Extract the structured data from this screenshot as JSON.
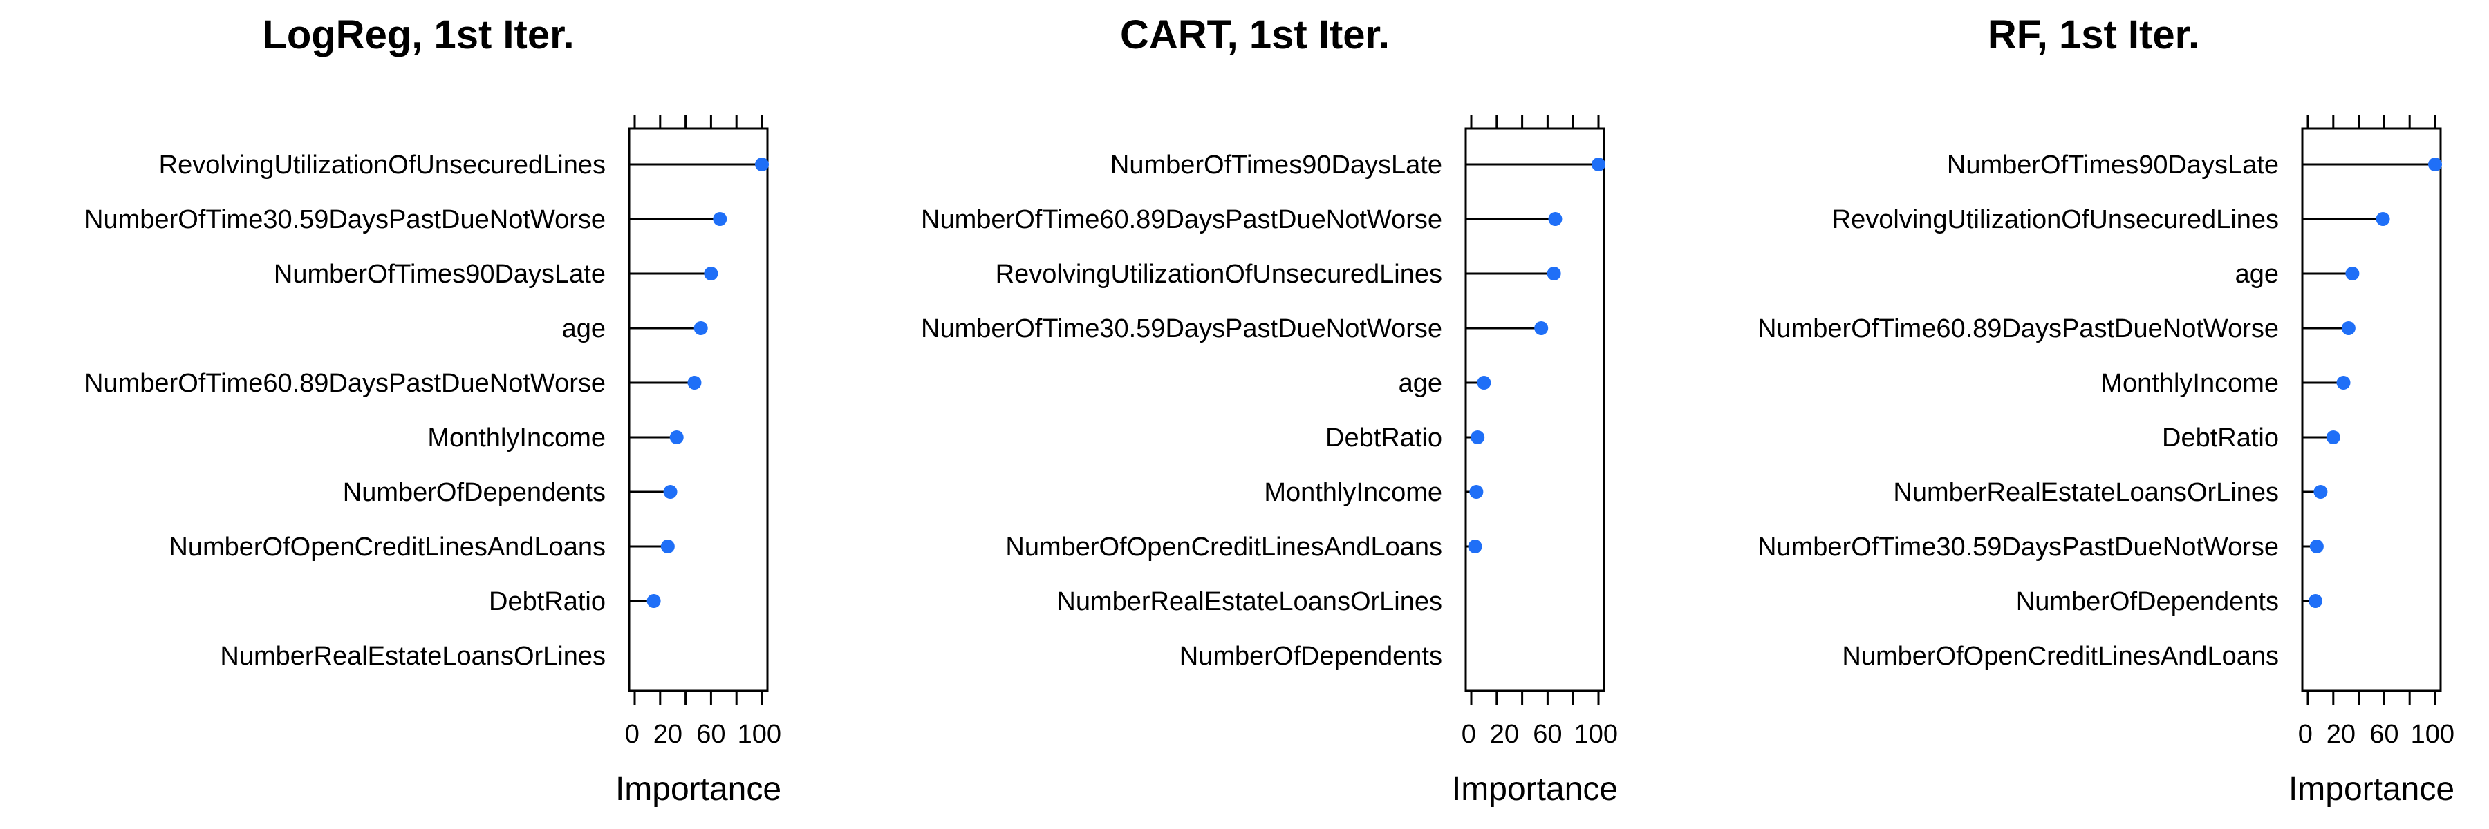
{
  "colors": {
    "point": "#1f6ff7",
    "stem": "#000000",
    "frame": "#000000"
  },
  "chart_data": [
    {
      "type": "lollipop",
      "title": "LogReg, 1st Iter.",
      "xlabel": "Importance",
      "xlim": [
        0,
        100
      ],
      "xticks": [
        "0",
        "20",
        "60",
        "100"
      ],
      "categories": [
        "RevolvingUtilizationOfUnsecuredLines",
        "NumberOfTime30.59DaysPastDueNotWorse",
        "NumberOfTimes90DaysLate",
        "age",
        "NumberOfTime60.89DaysPastDueNotWorse",
        "MonthlyIncome",
        "NumberOfDependents",
        "NumberOfOpenCreditLinesAndLoans",
        "DebtRatio",
        "NumberRealEstateLoansOrLines"
      ],
      "values": [
        100,
        67,
        60,
        52,
        47,
        33,
        28,
        26,
        15,
        0
      ]
    },
    {
      "type": "lollipop",
      "title": "CART, 1st Iter.",
      "xlabel": "Importance",
      "xlim": [
        0,
        100
      ],
      "xticks": [
        "0",
        "20",
        "60",
        "100"
      ],
      "categories": [
        "NumberOfTimes90DaysLate",
        "NumberOfTime60.89DaysPastDueNotWorse",
        "RevolvingUtilizationOfUnsecuredLines",
        "NumberOfTime30.59DaysPastDueNotWorse",
        "age",
        "DebtRatio",
        "MonthlyIncome",
        "NumberOfOpenCreditLinesAndLoans",
        "NumberRealEstateLoansOrLines",
        "NumberOfDependents"
      ],
      "values": [
        100,
        66,
        65,
        55,
        10,
        5,
        4,
        3,
        0,
        0
      ]
    },
    {
      "type": "lollipop",
      "title": "RF, 1st Iter.",
      "xlabel": "Importance",
      "xlim": [
        0,
        100
      ],
      "xticks": [
        "0",
        "20",
        "60",
        "100"
      ],
      "categories": [
        "NumberOfTimes90DaysLate",
        "RevolvingUtilizationOfUnsecuredLines",
        "age",
        "NumberOfTime60.89DaysPastDueNotWorse",
        "MonthlyIncome",
        "DebtRatio",
        "NumberRealEstateLoansOrLines",
        "NumberOfTime30.59DaysPastDueNotWorse",
        "NumberOfDependents",
        "NumberOfOpenCreditLinesAndLoans"
      ],
      "values": [
        100,
        59,
        35,
        32,
        28,
        20,
        10,
        7,
        6,
        0
      ]
    }
  ]
}
